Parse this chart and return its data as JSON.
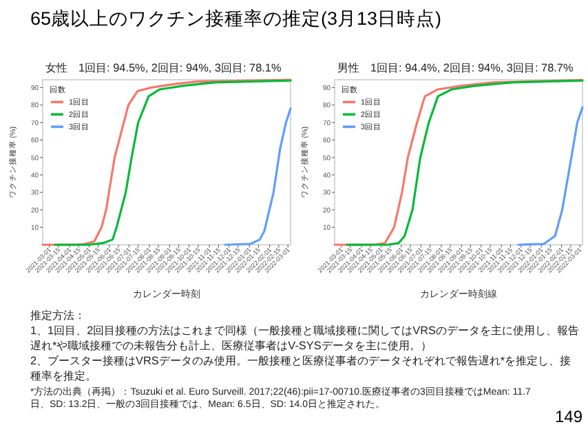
{
  "chart_data": [
    {
      "type": "other",
      "title": "65歳以上のワクチン接種率の推定(3月13日時点)"
    },
    {
      "type": "line",
      "title": "女性　1回目: 94.5%, 2回目: 94%, 3回目: 78.1%",
      "xlabel": "カレンダー時刻",
      "ylabel": "ワクチン接種率 (%)",
      "legend_title": "回数",
      "legend": "top left",
      "grid": false,
      "xlim": [
        "2021-02-19",
        "2022-03-05"
      ],
      "ylim": [
        0,
        94.5
      ],
      "xticks": [
        "2021-03-01",
        "2021-03-15",
        "2021-04-01",
        "2021-04-15",
        "2021-05-01",
        "2021-05-15",
        "2021-06-01",
        "2021-06-15",
        "2021-07-01",
        "2021-07-15",
        "2021-08-01",
        "2021-08-15",
        "2021-09-01",
        "2021-09-15",
        "2021-10-01",
        "2021-10-15",
        "2021-11-01",
        "2021-11-15",
        "2021-12-01",
        "2021-12-15",
        "2022-01-01",
        "2022-01-15",
        "2022-02-01",
        "2022-02-15",
        "2022-03-01"
      ],
      "yticks": [
        10,
        20,
        30,
        40,
        50,
        60,
        70,
        80,
        90
      ],
      "series": [
        {
          "name": "1回目",
          "color": "#f8766d",
          "x": [
            "2021-02-19",
            "2021-04-10",
            "2021-04-25",
            "2021-05-09",
            "2021-05-20",
            "2021-05-27",
            "2021-06-09",
            "2021-06-30",
            "2021-07-14",
            "2021-08-04",
            "2021-09-08",
            "2021-10-13",
            "2022-03-05"
          ],
          "values": [
            0,
            0,
            0.5,
            2,
            10,
            20,
            50,
            80,
            88,
            90,
            92,
            93.5,
            94.5
          ]
        },
        {
          "name": "2回目",
          "color": "#00ba38",
          "x": [
            "2021-03-10",
            "2021-05-01",
            "2021-05-23",
            "2021-06-06",
            "2021-06-12",
            "2021-06-26",
            "2021-07-05",
            "2021-07-15",
            "2021-07-31",
            "2021-08-17",
            "2021-09-21",
            "2021-11-09",
            "2022-03-05"
          ],
          "values": [
            0,
            0,
            1,
            3,
            10,
            30,
            50,
            70,
            85,
            89,
            91,
            93,
            94
          ]
        },
        {
          "name": "3回目",
          "color": "#619cff",
          "x": [
            "2021-11-25",
            "2022-01-03",
            "2022-01-17",
            "2022-01-24",
            "2022-02-07",
            "2022-02-17",
            "2022-02-26",
            "2022-03-05"
          ],
          "values": [
            0,
            0.5,
            3,
            8,
            30,
            55,
            70,
            78.1
          ]
        }
      ]
    },
    {
      "type": "line",
      "title": "男性　1回目: 94.4%, 2回目: 94%, 3回目: 78.7%",
      "xlabel": "カレンダー時刻線",
      "ylabel": "ワクチン接種率 (%)",
      "legend_title": "回数",
      "legend": "top left",
      "grid": false,
      "xlim": [
        "2021-02-19",
        "2022-03-05"
      ],
      "ylim": [
        0,
        94.5
      ],
      "xticks": [
        "2021-03-01",
        "2021-03-15",
        "2021-04-01",
        "2021-04-15",
        "2021-05-01",
        "2021-05-15",
        "2021-06-01",
        "2021-06-15",
        "2021-07-01",
        "2021-07-15",
        "2021-08-01",
        "2021-08-15",
        "2021-09-01",
        "2021-09-15",
        "2021-10-01",
        "2021-10-15",
        "2021-11-01",
        "2021-11-15",
        "2021-12-01",
        "2021-12-15",
        "2022-01-01",
        "2022-01-15",
        "2022-02-01",
        "2022-02-15",
        "2022-03-01"
      ],
      "yticks": [
        10,
        20,
        30,
        40,
        50,
        60,
        70,
        80,
        90
      ],
      "series": [
        {
          "name": "1回目",
          "color": "#f8766d",
          "x": [
            "2021-02-19",
            "2021-04-20",
            "2021-05-07",
            "2021-05-21",
            "2021-06-02",
            "2021-06-11",
            "2021-06-25",
            "2021-07-07",
            "2021-07-27",
            "2021-08-31",
            "2021-10-19",
            "2022-03-05"
          ],
          "values": [
            0,
            0,
            1,
            10,
            30,
            50,
            70,
            85,
            89,
            91,
            93,
            94.4
          ]
        },
        {
          "name": "2回目",
          "color": "#00ba38",
          "x": [
            "2021-03-10",
            "2021-05-10",
            "2021-05-28",
            "2021-06-06",
            "2021-06-18",
            "2021-06-30",
            "2021-07-13",
            "2021-07-27",
            "2021-08-17",
            "2021-09-21",
            "2021-11-17",
            "2022-03-05"
          ],
          "values": [
            0,
            0,
            1,
            5,
            20,
            50,
            70,
            85,
            89,
            91,
            93,
            94
          ]
        },
        {
          "name": "3回目",
          "color": "#619cff",
          "x": [
            "2021-11-27",
            "2022-01-05",
            "2022-01-22",
            "2022-02-02",
            "2022-02-16",
            "2022-02-25",
            "2022-03-05"
          ],
          "values": [
            0,
            0.5,
            5,
            20,
            50,
            70,
            78.7
          ]
        }
      ]
    },
    {
      "type": "other",
      "annotations": [
        "推定方法：",
        "1、1回目、2回目接種の方法はこれまで同様（一般接種と職域接種に関してはVRSのデータを主に使用し、報告遅れ*や職域接種での未報告分も計上、医療従事者はV-SYSデータを主に使用。）",
        "2、ブースター接種はVRSデータのみ使用。一般接種と医療従事者のデータそれぞれで報告遅れ*を推定し、接種率を推定。",
        "*方法の出典（再掲）：Tsuzuki et al. Euro Surveill. 2017;22(46):pii=17-00710.医療従事者の3回目接種ではMean: 11.7日、SD: 13.2日、一般の3回目接種では、Mean: 6.5日、SD: 14.0日と推定された。",
        "149"
      ]
    }
  ]
}
